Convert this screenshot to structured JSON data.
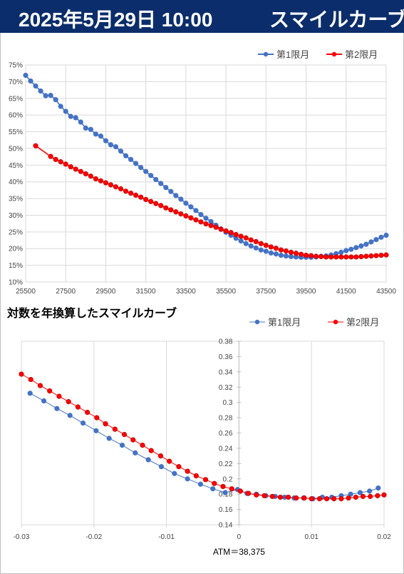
{
  "header": {
    "date": "2025年5月29日 10:00",
    "title": "スマイルカーブ",
    "bg_color": "#0b2d6b"
  },
  "chart_data": [
    {
      "type": "line",
      "title": "",
      "xlabel": "",
      "ylabel": "",
      "xlim": [
        25500,
        43500
      ],
      "ylim": [
        10,
        75
      ],
      "y_unit": "%",
      "grid": true,
      "legend_placement": "top-right",
      "x_ticks": [
        25500,
        27500,
        29500,
        31500,
        33500,
        35500,
        37500,
        39500,
        41500,
        43500
      ],
      "y_ticks": [
        10,
        15,
        20,
        25,
        30,
        35,
        40,
        45,
        50,
        55,
        60,
        65,
        70,
        75
      ],
      "series": [
        {
          "name": "第1限月",
          "color": "#4472c4",
          "x": [
            25500,
            25750,
            26000,
            26250,
            26500,
            26750,
            27000,
            27250,
            27500,
            27750,
            28000,
            28250,
            28500,
            28750,
            29000,
            29250,
            29500,
            29750,
            30000,
            30250,
            30500,
            30750,
            31000,
            31250,
            31500,
            31750,
            32000,
            32250,
            32500,
            32750,
            33000,
            33250,
            33500,
            33750,
            34000,
            34250,
            34500,
            34750,
            35000,
            35250,
            35500,
            35750,
            36000,
            36250,
            36500,
            36750,
            37000,
            37250,
            37500,
            37750,
            38000,
            38250,
            38500,
            38750,
            39000,
            39250,
            39500,
            39750,
            40000,
            40250,
            40500,
            40750,
            41000,
            41250,
            41500,
            41750,
            42000,
            42250,
            42500,
            42750,
            43000,
            43250,
            43500
          ],
          "values": [
            71.9,
            70.2,
            68.7,
            67.2,
            65.8,
            65.9,
            64.6,
            62.6,
            61.1,
            59.6,
            59.2,
            57.9,
            56.1,
            55.7,
            54.3,
            53.7,
            52.3,
            51.1,
            50.5,
            49.2,
            47.8,
            46.7,
            45.5,
            44.3,
            43.1,
            41.9,
            40.7,
            39.5,
            38.3,
            37.1,
            35.9,
            34.8,
            33.6,
            32.5,
            31.4,
            30.2,
            29.1,
            28.1,
            27.0,
            25.9,
            24.9,
            24.0,
            23.1,
            22.3,
            21.5,
            20.8,
            20.2,
            19.6,
            19.2,
            18.7,
            18.4,
            18.0,
            17.8,
            17.6,
            17.5,
            17.4,
            17.4,
            17.4,
            17.5,
            17.7,
            17.8,
            18.1,
            18.5,
            18.9,
            19.4,
            19.8,
            20.3,
            20.8,
            21.3,
            22.0,
            22.7,
            23.4,
            24.0
          ]
        },
        {
          "name": "第2限月",
          "color": "#ff0000",
          "x": [
            26000,
            26750,
            27000,
            27250,
            27500,
            27750,
            28000,
            28250,
            28500,
            28750,
            29000,
            29250,
            29500,
            29750,
            30000,
            30250,
            30500,
            30750,
            31000,
            31250,
            31500,
            31750,
            32000,
            32250,
            32500,
            32750,
            33000,
            33250,
            33500,
            33750,
            34000,
            34250,
            34500,
            34750,
            35000,
            35250,
            35500,
            35750,
            36000,
            36250,
            36500,
            36750,
            37000,
            37250,
            37500,
            37750,
            38000,
            38250,
            38500,
            38750,
            39000,
            39250,
            39500,
            39750,
            40000,
            40250,
            40500,
            40750,
            41000,
            41250,
            41500,
            41750,
            42000,
            42250,
            42500,
            42750,
            43000,
            43250,
            43500
          ],
          "values": [
            50.8,
            47.6,
            46.7,
            46.0,
            45.3,
            44.5,
            43.8,
            43.1,
            42.4,
            41.7,
            40.9,
            40.3,
            39.7,
            39.1,
            38.5,
            37.9,
            37.2,
            36.6,
            36.0,
            35.4,
            34.7,
            34.1,
            33.5,
            32.9,
            32.2,
            31.6,
            31.0,
            30.4,
            29.8,
            29.2,
            28.6,
            28.0,
            27.4,
            26.9,
            26.4,
            25.8,
            25.3,
            24.8,
            24.2,
            23.7,
            23.2,
            22.6,
            22.1,
            21.5,
            21.0,
            20.5,
            20.1,
            19.6,
            19.3,
            18.9,
            18.6,
            18.3,
            18.0,
            17.9,
            17.7,
            17.6,
            17.5,
            17.5,
            17.5,
            17.5,
            17.5,
            17.5,
            17.5,
            17.6,
            17.7,
            17.8,
            17.9,
            18.0,
            18.1
          ]
        }
      ]
    },
    {
      "type": "line",
      "title": "対数を年換算したスマイルカーブ",
      "xlabel": "ATM＝38,375",
      "ylabel": "",
      "xlim": [
        -0.03,
        0.02
      ],
      "ylim": [
        0.14,
        0.38
      ],
      "grid": true,
      "legend_placement": "top-right",
      "x_ticks": [
        -0.03,
        -0.02,
        -0.01,
        0,
        0.01,
        0.02
      ],
      "y_ticks": [
        0.14,
        0.16,
        0.18,
        0.2,
        0.22,
        0.24,
        0.26,
        0.28,
        0.3,
        0.32,
        0.34,
        0.36,
        0.38
      ],
      "series": [
        {
          "name": "第1限月",
          "color": "#4472c4",
          "x": [
            -0.0288,
            -0.0269,
            -0.0251,
            -0.0233,
            -0.0215,
            -0.0197,
            -0.0179,
            -0.0161,
            -0.0143,
            -0.0125,
            -0.0107,
            -0.0089,
            -0.0071,
            -0.0053,
            -0.0036,
            -0.0019,
            -0.0002,
            0.0011,
            0.0024,
            0.0037,
            0.005,
            0.0063,
            0.0076,
            0.0089,
            0.0102,
            0.0115,
            0.0128,
            0.0141,
            0.0154,
            0.0167,
            0.018,
            0.0192
          ],
          "values": [
            0.312,
            0.302,
            0.292,
            0.283,
            0.273,
            0.263,
            0.253,
            0.244,
            0.234,
            0.225,
            0.216,
            0.207,
            0.2,
            0.193,
            0.187,
            0.182,
            0.186,
            0.181,
            0.18,
            0.178,
            0.177,
            0.176,
            0.175,
            0.175,
            0.174,
            0.176,
            0.176,
            0.178,
            0.18,
            0.182,
            0.184,
            0.188
          ]
        },
        {
          "name": "第2限月",
          "color": "#ff0000",
          "x": [
            -0.03,
            -0.0287,
            -0.0274,
            -0.0261,
            -0.0248,
            -0.0235,
            -0.0222,
            -0.0209,
            -0.0196,
            -0.0184,
            -0.0171,
            -0.0158,
            -0.0146,
            -0.0133,
            -0.0121,
            -0.0108,
            -0.0096,
            -0.0083,
            -0.0071,
            -0.0059,
            -0.0046,
            -0.0034,
            -0.0022,
            -0.001,
            0.0002,
            0.0013,
            0.0024,
            0.0035,
            0.0046,
            0.0057,
            0.0068,
            0.0079,
            0.009,
            0.01,
            0.0111,
            0.0121,
            0.0131,
            0.0141,
            0.0151,
            0.0161,
            0.0171,
            0.0181,
            0.0191,
            0.02
          ],
          "values": [
            0.337,
            0.33,
            0.322,
            0.315,
            0.308,
            0.301,
            0.294,
            0.287,
            0.28,
            0.272,
            0.265,
            0.258,
            0.251,
            0.244,
            0.237,
            0.23,
            0.223,
            0.216,
            0.21,
            0.204,
            0.199,
            0.194,
            0.19,
            0.187,
            0.184,
            0.181,
            0.179,
            0.178,
            0.177,
            0.176,
            0.176,
            0.175,
            0.175,
            0.174,
            0.174,
            0.174,
            0.174,
            0.174,
            0.175,
            0.176,
            0.177,
            0.177,
            0.178,
            0.179
          ]
        }
      ]
    }
  ]
}
